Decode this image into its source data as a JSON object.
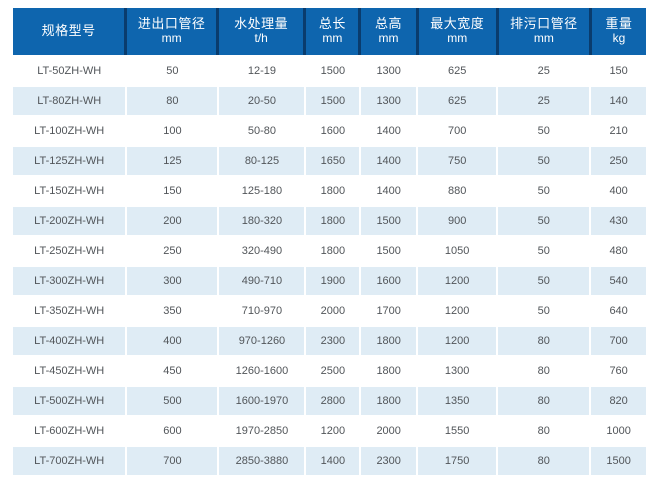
{
  "table": {
    "colors": {
      "header_bg": "#0e65ae",
      "header_divider": "#0a3c6d",
      "row_bg": "#ffffff",
      "row_alt_bg": "#dfecf5",
      "header_text": "#ffffff",
      "body_text": "#515559"
    },
    "columns": [
      {
        "label": "规格型号",
        "unit": ""
      },
      {
        "label": "进出口管径",
        "unit": "mm"
      },
      {
        "label": "水处理量",
        "unit": "t/h"
      },
      {
        "label": "总长",
        "unit": "mm"
      },
      {
        "label": "总高",
        "unit": "mm"
      },
      {
        "label": "最大宽度",
        "unit": "mm"
      },
      {
        "label": "排污口管径",
        "unit": "mm"
      },
      {
        "label": "重量",
        "unit": "kg"
      }
    ],
    "rows": [
      [
        "LT-50ZH-WH",
        "50",
        "12-19",
        "1500",
        "1300",
        "625",
        "25",
        "150"
      ],
      [
        "LT-80ZH-WH",
        "80",
        "20-50",
        "1500",
        "1300",
        "625",
        "25",
        "140"
      ],
      [
        "LT-100ZH-WH",
        "100",
        "50-80",
        "1600",
        "1400",
        "700",
        "50",
        "210"
      ],
      [
        "LT-125ZH-WH",
        "125",
        "80-125",
        "1650",
        "1400",
        "750",
        "50",
        "250"
      ],
      [
        "LT-150ZH-WH",
        "150",
        "125-180",
        "1800",
        "1400",
        "880",
        "50",
        "400"
      ],
      [
        "LT-200ZH-WH",
        "200",
        "180-320",
        "1800",
        "1500",
        "900",
        "50",
        "430"
      ],
      [
        "LT-250ZH-WH",
        "250",
        "320-490",
        "1800",
        "1500",
        "1050",
        "50",
        "480"
      ],
      [
        "LT-300ZH-WH",
        "300",
        "490-710",
        "1900",
        "1600",
        "1200",
        "50",
        "540"
      ],
      [
        "LT-350ZH-WH",
        "350",
        "710-970",
        "2000",
        "1700",
        "1200",
        "50",
        "640"
      ],
      [
        "LT-400ZH-WH",
        "400",
        "970-1260",
        "2300",
        "1800",
        "1200",
        "80",
        "700"
      ],
      [
        "LT-450ZH-WH",
        "450",
        "1260-1600",
        "2500",
        "1800",
        "1300",
        "80",
        "760"
      ],
      [
        "LT-500ZH-WH",
        "500",
        "1600-1970",
        "2800",
        "1800",
        "1350",
        "80",
        "820"
      ],
      [
        "LT-600ZH-WH",
        "600",
        "1970-2850",
        "1200",
        "2000",
        "1550",
        "80",
        "1000"
      ],
      [
        "LT-700ZH-WH",
        "700",
        "2850-3880",
        "1400",
        "2300",
        "1750",
        "80",
        "1500"
      ]
    ]
  }
}
